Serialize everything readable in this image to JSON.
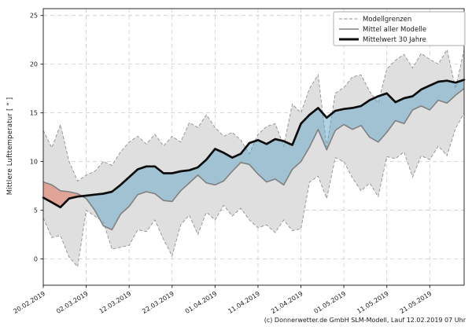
{
  "footer": {
    "credit": "(c) Donnerwetter.de GmbH SLM-Modell, Lauf 12.02.2019 07 Uhr"
  },
  "chart_data": {
    "type": "area",
    "title": "",
    "xlabel": "",
    "ylabel": "Mittlere Lufttemperatur [ ° ]",
    "ylim": [
      -2.7,
      25.7
    ],
    "yticks": [
      0,
      5,
      10,
      15,
      20,
      25
    ],
    "xlim_days": [
      0,
      98
    ],
    "grid": true,
    "xticks": [
      {
        "day": 0,
        "label": "20.02.2019"
      },
      {
        "day": 10,
        "label": "02.03.2019"
      },
      {
        "day": 20,
        "label": "12.03.2019"
      },
      {
        "day": 30,
        "label": "22.03.2019"
      },
      {
        "day": 40,
        "label": "01.04.2019"
      },
      {
        "day": 50,
        "label": "11.04.2019"
      },
      {
        "day": 60,
        "label": "21.04.2019"
      },
      {
        "day": 70,
        "label": "01.05.2019"
      },
      {
        "day": 80,
        "label": "11.05.2019"
      },
      {
        "day": 90,
        "label": "21.05.2019"
      }
    ],
    "legend": {
      "position": "upper right",
      "entries": [
        {
          "label": "Modellgrenzen",
          "style": "dashed-gray"
        },
        {
          "label": "Mittel aller Modelle",
          "style": "solid-gray"
        },
        {
          "label": "Mittelwert 30 Jahre",
          "style": "thick-black"
        }
      ]
    },
    "days": [
      0,
      2,
      4,
      6,
      8,
      10,
      12,
      14,
      16,
      18,
      20,
      22,
      24,
      26,
      28,
      30,
      32,
      34,
      36,
      38,
      40,
      42,
      44,
      46,
      48,
      50,
      52,
      54,
      56,
      58,
      60,
      62,
      64,
      66,
      68,
      70,
      72,
      74,
      76,
      78,
      80,
      82,
      84,
      86,
      88,
      90,
      92,
      94,
      96,
      98
    ],
    "series": [
      {
        "name": "Modellgrenzen (oben)",
        "values": [
          13.2,
          11.4,
          13.8,
          10.0,
          8.0,
          8.6,
          9.0,
          10.0,
          9.6,
          11.0,
          12.0,
          12.6,
          11.8,
          12.8,
          11.6,
          12.6,
          12.0,
          14.0,
          13.5,
          14.8,
          13.5,
          12.6,
          13.0,
          12.2,
          10.8,
          12.8,
          13.6,
          13.9,
          11.6,
          15.9,
          15.0,
          17.5,
          18.9,
          11.5,
          17.0,
          17.6,
          18.7,
          18.9,
          17.2,
          16.0,
          19.5,
          20.4,
          21.0,
          19.6,
          21.1,
          20.5,
          20.0,
          21.5,
          17.5,
          21.5
        ]
      },
      {
        "name": "Modellgrenzen (unten)",
        "values": [
          4.2,
          2.2,
          2.4,
          0.2,
          -0.8,
          5.0,
          4.4,
          3.8,
          1.0,
          1.2,
          1.4,
          3.0,
          2.8,
          4.0,
          2.0,
          0.3,
          3.5,
          4.5,
          2.5,
          4.8,
          4.0,
          5.5,
          4.4,
          5.2,
          4.0,
          3.2,
          3.5,
          2.7,
          4.0,
          2.9,
          3.1,
          7.9,
          8.5,
          6.2,
          10.4,
          10.0,
          8.3,
          7.0,
          7.8,
          6.4,
          10.5,
          10.3,
          11.0,
          8.4,
          10.6,
          10.2,
          11.6,
          10.6,
          13.4,
          15.0
        ]
      },
      {
        "name": "Mittel aller Modelle",
        "values": [
          7.9,
          7.6,
          7.0,
          6.9,
          6.7,
          6.2,
          5.0,
          3.4,
          3.0,
          4.6,
          5.4,
          6.6,
          6.9,
          6.7,
          6.0,
          5.9,
          7.0,
          7.8,
          8.6,
          7.8,
          7.6,
          8.0,
          9.0,
          9.9,
          9.7,
          8.7,
          7.9,
          8.2,
          7.6,
          9.2,
          10.0,
          11.5,
          13.3,
          11.2,
          13.2,
          13.8,
          13.3,
          13.7,
          12.5,
          12.0,
          13.0,
          14.2,
          13.9,
          15.3,
          15.7,
          15.3,
          16.3,
          16.0,
          16.8,
          17.5
        ]
      },
      {
        "name": "Mittelwert 30 Jahre",
        "values": [
          6.3,
          5.8,
          5.3,
          6.2,
          6.4,
          6.5,
          6.6,
          6.7,
          6.9,
          7.6,
          8.4,
          9.2,
          9.5,
          9.5,
          8.8,
          8.8,
          9.0,
          9.1,
          9.4,
          10.2,
          11.3,
          10.9,
          10.4,
          10.8,
          11.9,
          12.2,
          11.8,
          12.3,
          12.1,
          11.7,
          13.9,
          14.8,
          15.5,
          14.5,
          15.2,
          15.4,
          15.5,
          15.7,
          16.3,
          16.7,
          17.0,
          16.1,
          16.5,
          16.7,
          17.4,
          17.8,
          18.2,
          18.3,
          18.1,
          18.4
        ]
      }
    ],
    "colors": {
      "band": "#dfdfdf",
      "band_edge": "#8f8f8f",
      "above_normal": "rgba(226,106,80,0.5)",
      "below_normal": "rgba(100,165,200,0.5)",
      "model_mean_line": "#808080",
      "climate_line": "#0d0d0d",
      "grid": "#cccccc",
      "spine": "#2b2b2b"
    }
  }
}
